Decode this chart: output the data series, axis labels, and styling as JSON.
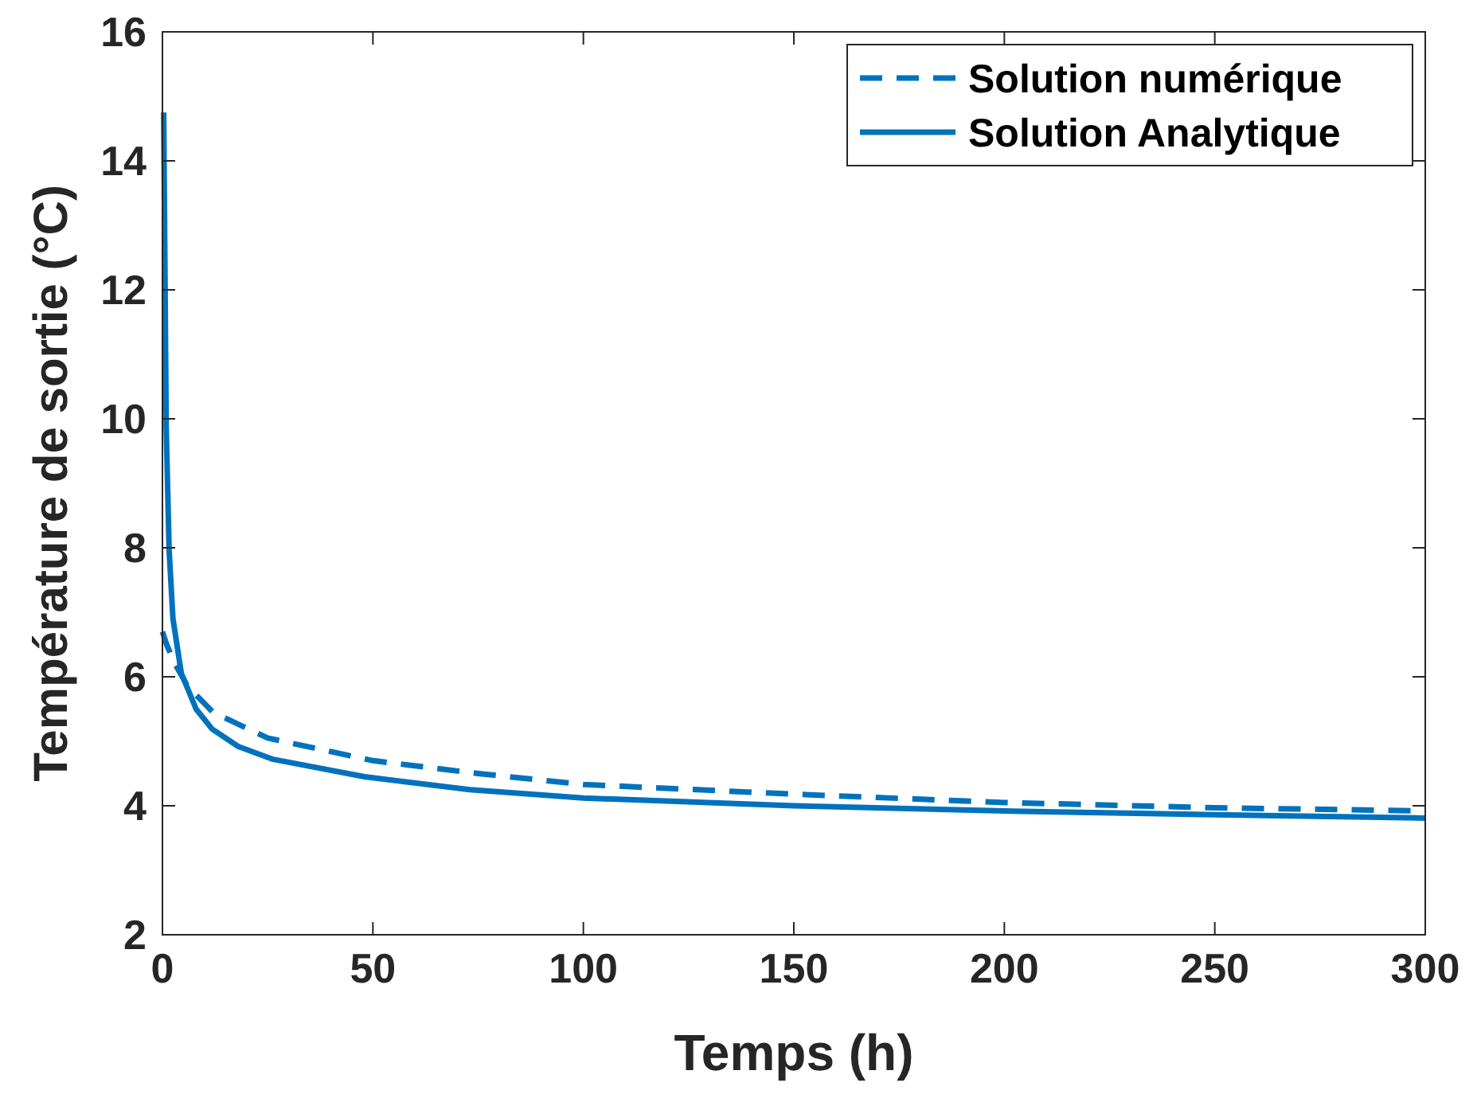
{
  "chart_data": {
    "type": "line",
    "xlabel": "Temps (h)",
    "ylabel": "Température de sortie (°C)",
    "xlim": [
      0,
      300
    ],
    "ylim": [
      2,
      16
    ],
    "xticks": [
      0,
      50,
      100,
      150,
      200,
      250,
      300
    ],
    "yticks": [
      2,
      4,
      6,
      8,
      10,
      12,
      14,
      16
    ],
    "grid": false,
    "legend": "top right",
    "marker": "none",
    "series": [
      {
        "name": "Solution numérique",
        "color": "#0072bd",
        "line_style": "dashed",
        "x": [
          0,
          1,
          3,
          6,
          12,
          25,
          50,
          75,
          100,
          150,
          200,
          250,
          300
        ],
        "values": [
          6.7,
          6.5,
          6.2,
          5.85,
          5.45,
          5.05,
          4.7,
          4.5,
          4.33,
          4.18,
          4.05,
          3.97,
          3.92
        ]
      },
      {
        "name": "Solution Analytique",
        "color": "#0072bd",
        "line_style": "solid",
        "x": [
          0.3,
          0.9,
          1.6,
          2.5,
          4.5,
          8,
          11.8,
          18,
          26.3,
          48,
          73,
          100,
          150,
          200,
          250,
          300
        ],
        "values": [
          14.75,
          9.85,
          7.95,
          6.9,
          6.05,
          5.5,
          5.19,
          4.92,
          4.72,
          4.45,
          4.25,
          4.12,
          4.0,
          3.92,
          3.86,
          3.81
        ]
      }
    ]
  }
}
